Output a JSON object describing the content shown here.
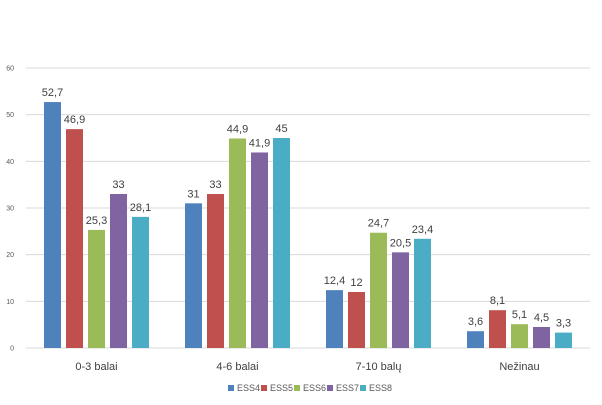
{
  "chart_data": {
    "type": "bar",
    "title": "",
    "xlabel": "",
    "ylabel": "",
    "ylim": [
      0,
      60
    ],
    "yticks": [
      0,
      10,
      20,
      30,
      40,
      50,
      60
    ],
    "grid": true,
    "legend_position": "bottom",
    "categories": [
      "0-3 balai",
      "4-6 balai",
      "7-10 balų",
      "Nežinau"
    ],
    "series": [
      {
        "name": "ESS4",
        "color": "#4f81bd",
        "values": [
          52.7,
          31,
          12.4,
          3.6
        ],
        "labels": [
          "52,7",
          "31",
          "12,4",
          "3,6"
        ]
      },
      {
        "name": "ESS5",
        "color": "#c0504d",
        "values": [
          46.9,
          33,
          12,
          8.1
        ],
        "labels": [
          "46,9",
          "33",
          "12",
          "8,1"
        ]
      },
      {
        "name": "ESS6",
        "color": "#9bbb59",
        "values": [
          25.3,
          44.9,
          24.7,
          5.1
        ],
        "labels": [
          "25,3",
          "44,9",
          "24,7",
          "5,1"
        ]
      },
      {
        "name": "ESS7",
        "color": "#8064a2",
        "values": [
          33,
          41.9,
          20.5,
          4.5
        ],
        "labels": [
          "33",
          "41,9",
          "20,5",
          "4,5"
        ]
      },
      {
        "name": "ESS8",
        "color": "#4bacc6",
        "values": [
          28.1,
          45,
          23.4,
          3.3
        ],
        "labels": [
          "28,1",
          "45",
          "23,4",
          "3,3"
        ]
      }
    ]
  }
}
